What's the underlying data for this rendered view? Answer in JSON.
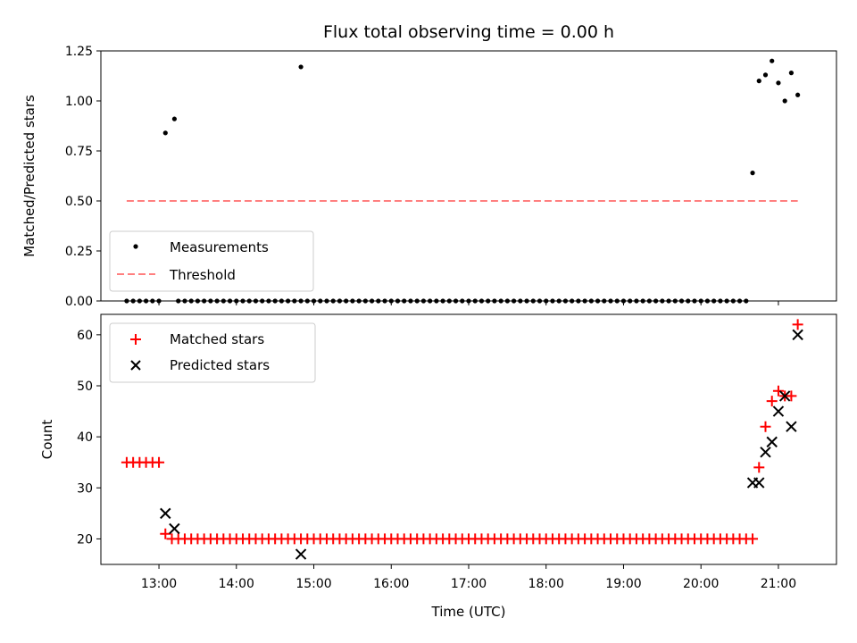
{
  "chart_data": [
    {
      "type": "scatter",
      "title": "Flux total observing time = 0.00 h",
      "xlabel": "",
      "ylabel": "Matched/Predicted stars",
      "x_unit": "UTC time (HH:MM)",
      "xlim": [
        "12:15",
        "21:45"
      ],
      "ylim": [
        0,
        1.25
      ],
      "yticks": [
        "0.00",
        "0.25",
        "0.50",
        "0.75",
        "1.00",
        "1.25"
      ],
      "grid": false,
      "legend": "lower-left",
      "legend_entries": [
        "Measurements",
        "Threshold"
      ],
      "threshold": {
        "name": "Threshold",
        "y": 0.5,
        "x_start": "12:35",
        "x_end": "21:15",
        "color": "#ff7f7f",
        "style": "dashed"
      },
      "series": [
        {
          "name": "Measurements",
          "marker": "dot",
          "color": "#000000",
          "points": [
            [
              "13:05",
              0.84
            ],
            [
              "13:12",
              0.91
            ],
            [
              "14:50",
              1.17
            ],
            [
              "20:40",
              0.64
            ],
            [
              "20:45",
              1.1
            ],
            [
              "20:50",
              1.13
            ],
            [
              "20:55",
              1.2
            ],
            [
              "21:00",
              1.09
            ],
            [
              "21:05",
              1.0
            ],
            [
              "21:10",
              1.14
            ],
            [
              "21:15",
              1.03
            ]
          ],
          "zero_points_from_to_step": [
            [
              "12:35",
              "13:00",
              5
            ],
            [
              "13:15",
              "14:45",
              5
            ],
            [
              "14:50",
              "20:35",
              5
            ]
          ]
        }
      ]
    },
    {
      "type": "scatter",
      "title": "",
      "xlabel": "Time (UTC)",
      "ylabel": "Count",
      "xlim": [
        "12:15",
        "21:45"
      ],
      "xticks": [
        "13:00",
        "14:00",
        "15:00",
        "16:00",
        "17:00",
        "18:00",
        "19:00",
        "20:00",
        "21:00"
      ],
      "ylim": [
        15,
        64
      ],
      "yticks": [
        "20",
        "30",
        "40",
        "50",
        "60"
      ],
      "grid": false,
      "legend": "top-left",
      "legend_entries": [
        "Matched stars",
        "Predicted stars"
      ],
      "series": [
        {
          "name": "Matched stars",
          "marker": "plus",
          "color": "#ff0000",
          "points": [
            [
              "12:35",
              35
            ],
            [
              "12:40",
              35
            ],
            [
              "12:45",
              35
            ],
            [
              "12:50",
              35
            ],
            [
              "12:55",
              35
            ],
            [
              "13:00",
              35
            ],
            [
              "13:05",
              21
            ],
            [
              "13:10",
              20
            ],
            [
              "20:45",
              34
            ],
            [
              "20:50",
              42
            ],
            [
              "20:55",
              47
            ],
            [
              "21:00",
              49
            ],
            [
              "21:05",
              48
            ],
            [
              "21:10",
              48
            ],
            [
              "21:15",
              62
            ]
          ],
          "constant_from_to_step": {
            "value": 20,
            "from": "13:15",
            "to": "20:40",
            "step_min": 5
          }
        },
        {
          "name": "Predicted stars",
          "marker": "x",
          "color": "#000000",
          "points": [
            [
              "13:05",
              25
            ],
            [
              "13:12",
              22
            ],
            [
              "14:50",
              17
            ],
            [
              "20:40",
              31
            ],
            [
              "20:45",
              31
            ],
            [
              "20:50",
              37
            ],
            [
              "20:55",
              39
            ],
            [
              "21:00",
              45
            ],
            [
              "21:05",
              48
            ],
            [
              "21:10",
              42
            ],
            [
              "21:15",
              60
            ]
          ]
        }
      ]
    }
  ]
}
